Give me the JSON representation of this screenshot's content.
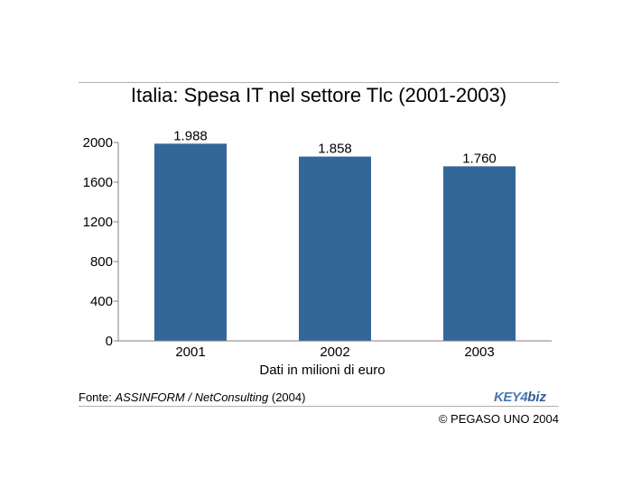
{
  "chart_data": {
    "type": "bar",
    "title": "Italia: Spesa IT nel settore Tlc (2001-2003)",
    "categories": [
      "2001",
      "2002",
      "2003"
    ],
    "values": [
      1988,
      1858,
      1760
    ],
    "value_labels": [
      "1.988",
      "1.858",
      "1.760"
    ],
    "xlabel": "Dati in milioni di euro",
    "ylabel": "",
    "ylim": [
      0,
      2000
    ],
    "yticks": [
      0,
      400,
      800,
      1200,
      1600,
      2000
    ],
    "grid": false,
    "bar_color": "#336699"
  },
  "footer": {
    "source_prefix": "Fonte: ",
    "source_name": "ASSINFORM / NetConsulting",
    "source_year": " (2004)",
    "copyright": "© PEGASO UNO 2004",
    "logo_key": "KEY4",
    "logo_biz": "biz"
  }
}
